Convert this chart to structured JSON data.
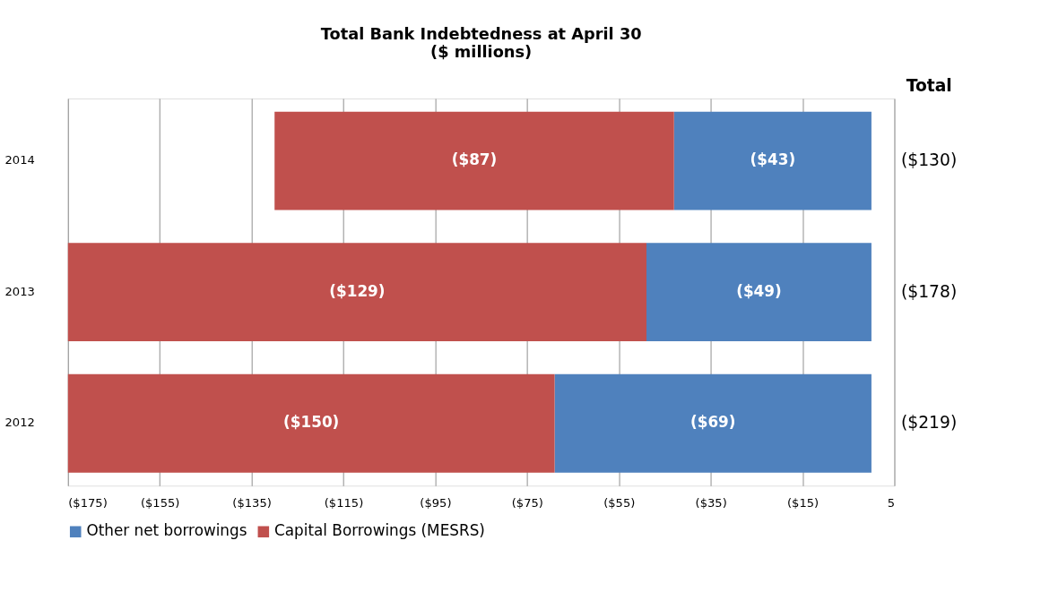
{
  "chart_data": {
    "type": "bar",
    "orientation": "horizontal",
    "stacked": true,
    "title": "Total Bank Indebtedness at April 30",
    "subtitle": "($ millions)",
    "categories": [
      "2014",
      "2013",
      "2012"
    ],
    "series": [
      {
        "name": "Other net borrowings",
        "color": "#4f81bd",
        "values": [
          -43,
          -49,
          -69
        ],
        "value_labels": [
          "($43)",
          "($49)",
          "($69)"
        ]
      },
      {
        "name": "Capital Borrowings (MESRS)",
        "color": "#c0504d",
        "values": [
          -87,
          -129,
          -150
        ],
        "value_labels": [
          "($87)",
          "($129)",
          "($150)"
        ]
      }
    ],
    "totals": [
      "($130)",
      "($178)",
      "($219)"
    ],
    "annotations": [
      "Total"
    ],
    "xlim": [
      -175,
      5
    ],
    "xticks": [
      {
        "value": -175,
        "label": "($175)"
      },
      {
        "value": -155,
        "label": "($155)"
      },
      {
        "value": -135,
        "label": "($135)"
      },
      {
        "value": -115,
        "label": "($115)"
      },
      {
        "value": -95,
        "label": "($95)"
      },
      {
        "value": -75,
        "label": "($75)"
      },
      {
        "value": -55,
        "label": "($55)"
      },
      {
        "value": -35,
        "label": "($35)"
      },
      {
        "value": -15,
        "label": "($15)"
      },
      5
    ],
    "grid": "x",
    "legend": "bottom"
  }
}
